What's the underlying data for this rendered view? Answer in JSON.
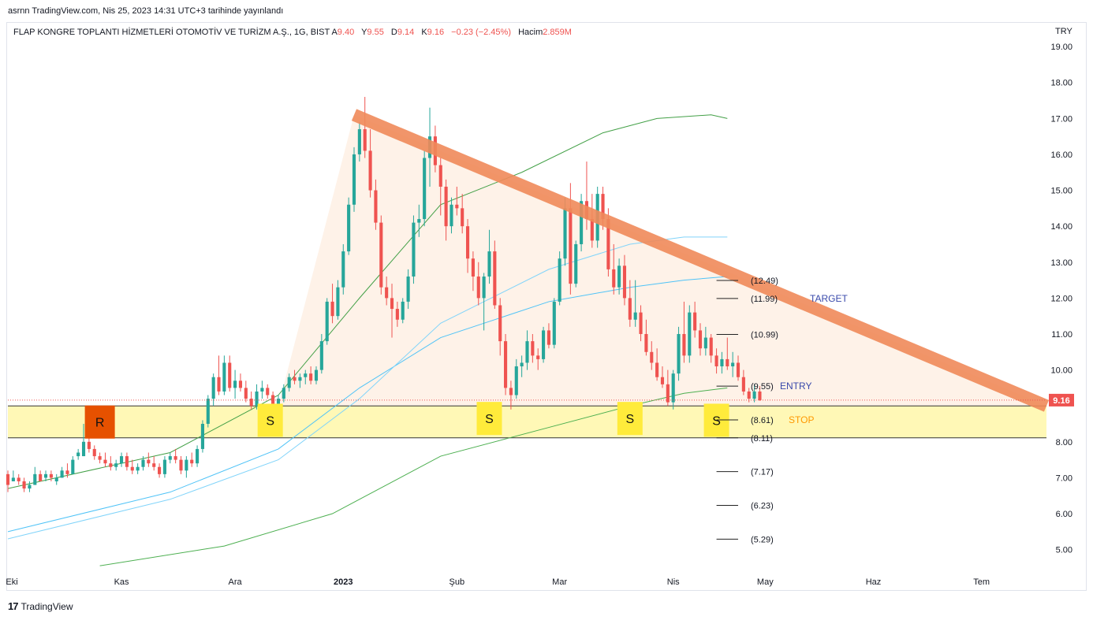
{
  "header": {
    "publish_line": "asrnn TradingView.com, Nis 25, 2023 14:31 UTC+3 tarihinde yayınlandı",
    "symbol": "FLAP KONGRE TOPLANTI HİZMETLERİ OTOMOTİV VE TURİZM A.Ş., 1G, BIST",
    "open_label": "A",
    "open": "9.40",
    "high_label": "Y",
    "high": "9.55",
    "low_label": "D",
    "low": "9.14",
    "close_label": "K",
    "close": "9.16",
    "change": "−0.23 (−2.45%)",
    "volume_label": "Hacim",
    "volume": "2.859M",
    "currency": "TRY"
  },
  "footer": {
    "brand": "TradingView",
    "logo_glyph": "17"
  },
  "colors": {
    "up": "#26a69a",
    "down": "#ef5350",
    "trendline": "#f08a5a",
    "support_zone": "#fff59d",
    "marker_s": "#ffeb3b",
    "marker_r": "#e65100",
    "last_price_bg": "#ef5350"
  },
  "chart_data": {
    "type": "candlestick",
    "y_ticks": [
      "5.00",
      "6.00",
      "7.00",
      "8.00",
      "9.00",
      "10.00",
      "11.00",
      "12.00",
      "13.00",
      "14.00",
      "15.00",
      "16.00",
      "17.00",
      "18.00",
      "19.00"
    ],
    "ylim": [
      4.4,
      19.2
    ],
    "x_ticks": [
      {
        "label": "Eki",
        "x": 0
      },
      {
        "label": "Kas",
        "x": 21
      },
      {
        "label": "Ara",
        "x": 42
      },
      {
        "label": "2023",
        "x": 62
      },
      {
        "label": "Şub",
        "x": 83
      },
      {
        "label": "Mar",
        "x": 102
      },
      {
        "label": "Nis",
        "x": 123
      },
      {
        "label": "May",
        "x": 140
      },
      {
        "label": "Haz",
        "x": 160
      },
      {
        "label": "Tem",
        "x": 180
      }
    ],
    "xlim": [
      0,
      192
    ],
    "last_price": "9.16",
    "support_zone": [
      8.11,
      9.0
    ],
    "levels": [
      {
        "value": 12.49,
        "label": "(12.49)",
        "tag": ""
      },
      {
        "value": 11.99,
        "label": "(11.99)",
        "tag": "TARGET"
      },
      {
        "value": 10.99,
        "label": "(10.99)",
        "tag": ""
      },
      {
        "value": 9.55,
        "label": "(9.55)",
        "tag": "ENTRY"
      },
      {
        "value": 8.61,
        "label": "(8.61)",
        "tag": "STOP"
      },
      {
        "value": 8.11,
        "label": "(8.11)",
        "tag": ""
      },
      {
        "value": 7.17,
        "label": "(7.17)",
        "tag": ""
      },
      {
        "value": 6.23,
        "label": "(6.23)",
        "tag": ""
      },
      {
        "value": 5.29,
        "label": "(5.29)",
        "tag": ""
      }
    ],
    "level_x_range": [
      131,
      135
    ],
    "trendline": [
      [
        64,
        17.1
      ],
      [
        192,
        9.0
      ]
    ],
    "markers": [
      {
        "text": "R",
        "x": 17,
        "y": 8.55
      },
      {
        "text": "S",
        "x": 48.5,
        "y": 8.6
      },
      {
        "text": "S",
        "x": 89,
        "y": 8.65
      },
      {
        "text": "S",
        "x": 115,
        "y": 8.65
      },
      {
        "text": "S",
        "x": 131,
        "y": 8.6
      }
    ],
    "sma_slow": [
      [
        17,
        4.55
      ],
      [
        40,
        5.1
      ],
      [
        60,
        6.0
      ],
      [
        80,
        7.6
      ],
      [
        100,
        8.4
      ],
      [
        115,
        9.0
      ],
      [
        125,
        9.35
      ],
      [
        133,
        9.5
      ]
    ],
    "sma_mid": [
      [
        0,
        6.7
      ],
      [
        30,
        7.7
      ],
      [
        50,
        9.3
      ],
      [
        65,
        12.0
      ],
      [
        80,
        14.6
      ],
      [
        95,
        15.5
      ],
      [
        110,
        16.6
      ],
      [
        120,
        17.0
      ],
      [
        130,
        17.1
      ],
      [
        133,
        17.0
      ]
    ],
    "sma_fast": [
      [
        0,
        5.5
      ],
      [
        30,
        6.6
      ],
      [
        50,
        7.8
      ],
      [
        65,
        9.5
      ],
      [
        80,
        10.9
      ],
      [
        100,
        11.9
      ],
      [
        115,
        12.3
      ],
      [
        125,
        12.5
      ],
      [
        133,
        12.6
      ]
    ],
    "sma_fast2": [
      [
        0,
        5.3
      ],
      [
        30,
        6.4
      ],
      [
        50,
        7.5
      ],
      [
        65,
        9.2
      ],
      [
        80,
        11.3
      ],
      [
        100,
        12.8
      ],
      [
        115,
        13.5
      ],
      [
        125,
        13.7
      ],
      [
        133,
        13.7
      ]
    ],
    "candles": [
      [
        7.1,
        7.2,
        6.6,
        6.8
      ],
      [
        6.9,
        7.2,
        6.9,
        7.0
      ],
      [
        7.0,
        7.1,
        6.8,
        6.9
      ],
      [
        6.9,
        7.0,
        6.6,
        6.7
      ],
      [
        6.7,
        6.9,
        6.6,
        6.8
      ],
      [
        6.8,
        7.3,
        6.8,
        7.1
      ],
      [
        7.1,
        7.2,
        6.9,
        6.9
      ],
      [
        7.0,
        7.2,
        6.9,
        7.1
      ],
      [
        7.1,
        7.2,
        6.9,
        7.0
      ],
      [
        6.9,
        7.1,
        6.8,
        7.0
      ],
      [
        7.0,
        7.3,
        7.0,
        7.2
      ],
      [
        7.2,
        7.4,
        7.0,
        7.1
      ],
      [
        7.1,
        7.6,
        7.1,
        7.5
      ],
      [
        7.6,
        7.8,
        7.5,
        7.7
      ],
      [
        7.6,
        8.5,
        7.6,
        8.0
      ],
      [
        8.0,
        8.2,
        7.7,
        7.8
      ],
      [
        7.8,
        7.9,
        7.5,
        7.6
      ],
      [
        7.6,
        7.7,
        7.4,
        7.5
      ],
      [
        7.5,
        7.7,
        7.3,
        7.4
      ],
      [
        7.4,
        7.6,
        7.2,
        7.3
      ],
      [
        7.3,
        7.5,
        7.2,
        7.4
      ],
      [
        7.4,
        7.7,
        7.3,
        7.6
      ],
      [
        7.6,
        7.7,
        7.2,
        7.3
      ],
      [
        7.3,
        7.5,
        7.1,
        7.2
      ],
      [
        7.2,
        7.4,
        7.1,
        7.3
      ],
      [
        7.3,
        7.6,
        7.2,
        7.5
      ],
      [
        7.5,
        7.7,
        7.3,
        7.4
      ],
      [
        7.4,
        7.6,
        7.2,
        7.3
      ],
      [
        7.3,
        7.4,
        7.0,
        7.1
      ],
      [
        7.1,
        7.6,
        7.0,
        7.5
      ],
      [
        7.5,
        7.7,
        7.4,
        7.6
      ],
      [
        7.6,
        7.8,
        7.4,
        7.5
      ],
      [
        7.5,
        7.6,
        7.1,
        7.2
      ],
      [
        7.2,
        7.6,
        7.0,
        7.5
      ],
      [
        7.5,
        7.7,
        7.3,
        7.4
      ],
      [
        7.4,
        7.9,
        7.3,
        7.8
      ],
      [
        7.8,
        8.6,
        7.7,
        8.5
      ],
      [
        8.5,
        9.3,
        8.4,
        9.2
      ],
      [
        9.2,
        9.9,
        9.0,
        9.8
      ],
      [
        9.8,
        10.4,
        9.3,
        9.4
      ],
      [
        9.4,
        10.4,
        9.3,
        10.2
      ],
      [
        10.2,
        10.4,
        9.4,
        9.5
      ],
      [
        9.5,
        10.0,
        9.2,
        9.7
      ],
      [
        9.7,
        9.9,
        9.4,
        9.5
      ],
      [
        9.5,
        9.7,
        9.1,
        9.2
      ],
      [
        9.2,
        9.4,
        8.9,
        9.0
      ],
      [
        9.0,
        9.6,
        8.9,
        9.4
      ],
      [
        9.4,
        9.7,
        9.2,
        9.5
      ],
      [
        9.5,
        9.6,
        9.2,
        9.3
      ],
      [
        9.3,
        9.4,
        8.9,
        9.0
      ],
      [
        9.0,
        9.3,
        8.9,
        9.2
      ],
      [
        9.2,
        9.6,
        9.1,
        9.5
      ],
      [
        9.5,
        9.9,
        9.4,
        9.8
      ],
      [
        9.8,
        10.0,
        9.6,
        9.7
      ],
      [
        9.7,
        9.9,
        9.5,
        9.8
      ],
      [
        9.8,
        10.0,
        9.6,
        9.9
      ],
      [
        9.9,
        10.1,
        9.6,
        9.7
      ],
      [
        9.7,
        10.1,
        9.6,
        10.0
      ],
      [
        10.0,
        11.0,
        9.9,
        10.8
      ],
      [
        10.8,
        12.0,
        10.7,
        11.9
      ],
      [
        11.9,
        12.4,
        11.3,
        11.5
      ],
      [
        11.5,
        12.5,
        11.4,
        12.3
      ],
      [
        12.3,
        13.5,
        12.1,
        13.3
      ],
      [
        13.3,
        14.8,
        13.2,
        14.6
      ],
      [
        14.6,
        16.2,
        14.4,
        16.0
      ],
      [
        16.0,
        16.9,
        15.8,
        16.7
      ],
      [
        16.7,
        17.6,
        15.9,
        16.1
      ],
      [
        16.1,
        16.7,
        14.8,
        15.0
      ],
      [
        15.0,
        15.3,
        13.9,
        14.1
      ],
      [
        14.1,
        14.3,
        12.1,
        12.3
      ],
      [
        12.3,
        12.6,
        11.8,
        12.0
      ],
      [
        12.0,
        12.4,
        10.9,
        11.7
      ],
      [
        11.7,
        11.9,
        11.2,
        11.4
      ],
      [
        11.4,
        12.0,
        11.3,
        11.9
      ],
      [
        11.9,
        12.8,
        11.7,
        12.6
      ],
      [
        12.6,
        14.3,
        12.4,
        14.1
      ],
      [
        14.1,
        14.6,
        13.7,
        14.2
      ],
      [
        14.2,
        16.1,
        14.0,
        15.9
      ],
      [
        15.9,
        17.3,
        15.1,
        16.5
      ],
      [
        16.5,
        16.8,
        15.5,
        15.7
      ],
      [
        15.7,
        15.9,
        14.3,
        15.1
      ],
      [
        15.1,
        15.3,
        13.6,
        14.0
      ],
      [
        14.0,
        14.8,
        13.8,
        14.6
      ],
      [
        14.6,
        15.1,
        14.3,
        14.5
      ],
      [
        14.5,
        14.9,
        13.8,
        14.0
      ],
      [
        14.0,
        14.2,
        12.7,
        13.1
      ],
      [
        13.1,
        13.3,
        12.2,
        12.6
      ],
      [
        12.6,
        13.0,
        11.8,
        12.0
      ],
      [
        12.0,
        12.7,
        11.1,
        12.6
      ],
      [
        12.6,
        13.9,
        12.4,
        13.3
      ],
      [
        13.3,
        13.6,
        11.7,
        11.8
      ],
      [
        11.8,
        12.0,
        10.4,
        10.8
      ],
      [
        10.8,
        11.0,
        9.3,
        9.5
      ],
      [
        9.5,
        9.7,
        8.9,
        9.3
      ],
      [
        9.3,
        10.3,
        9.2,
        10.1
      ],
      [
        10.1,
        10.4,
        9.8,
        10.2
      ],
      [
        10.2,
        11.1,
        10.0,
        10.8
      ],
      [
        10.8,
        11.0,
        10.2,
        10.4
      ],
      [
        10.4,
        10.6,
        10.0,
        10.3
      ],
      [
        10.3,
        11.2,
        10.2,
        11.1
      ],
      [
        11.1,
        11.3,
        10.6,
        10.7
      ],
      [
        10.7,
        12.0,
        10.6,
        11.9
      ],
      [
        11.9,
        13.3,
        11.8,
        13.1
      ],
      [
        13.1,
        14.8,
        12.9,
        14.5
      ],
      [
        14.5,
        15.2,
        12.1,
        12.4
      ],
      [
        12.4,
        13.6,
        12.3,
        13.5
      ],
      [
        13.5,
        14.9,
        13.3,
        14.7
      ],
      [
        14.7,
        15.8,
        13.9,
        14.2
      ],
      [
        14.2,
        14.9,
        13.4,
        13.6
      ],
      [
        13.6,
        15.1,
        13.4,
        14.9
      ],
      [
        14.9,
        15.1,
        13.9,
        14.2
      ],
      [
        14.2,
        14.5,
        12.6,
        12.8
      ],
      [
        12.8,
        13.5,
        12.1,
        12.3
      ],
      [
        12.3,
        13.1,
        12.1,
        12.9
      ],
      [
        12.9,
        13.2,
        11.8,
        12.0
      ],
      [
        12.0,
        12.5,
        11.2,
        11.4
      ],
      [
        11.4,
        12.5,
        11.2,
        11.6
      ],
      [
        11.6,
        11.8,
        10.8,
        11.0
      ],
      [
        11.0,
        11.4,
        10.4,
        10.5
      ],
      [
        10.5,
        10.8,
        10.0,
        10.2
      ],
      [
        10.2,
        10.6,
        9.7,
        9.8
      ],
      [
        9.8,
        10.1,
        9.5,
        9.6
      ],
      [
        9.6,
        10.0,
        9.0,
        9.1
      ],
      [
        9.1,
        10.0,
        8.9,
        9.9
      ],
      [
        9.9,
        11.2,
        9.7,
        11.0
      ],
      [
        11.0,
        11.9,
        10.2,
        10.4
      ],
      [
        10.4,
        11.8,
        10.2,
        11.6
      ],
      [
        11.6,
        11.9,
        10.9,
        11.1
      ],
      [
        11.1,
        11.3,
        10.4,
        10.6
      ],
      [
        10.6,
        11.2,
        10.4,
        10.9
      ],
      [
        10.9,
        11.0,
        10.2,
        10.4
      ],
      [
        10.4,
        10.6,
        9.9,
        10.1
      ],
      [
        10.1,
        10.5,
        9.9,
        10.3
      ],
      [
        10.3,
        10.9,
        10.0,
        10.1
      ],
      [
        10.1,
        10.5,
        9.8,
        10.2
      ],
      [
        10.2,
        10.4,
        9.7,
        9.8
      ],
      [
        9.8,
        10.0,
        9.3,
        9.4
      ],
      [
        9.4,
        9.5,
        9.1,
        9.2
      ],
      [
        9.2,
        9.6,
        9.1,
        9.4
      ],
      [
        9.4,
        9.55,
        9.14,
        9.16
      ]
    ]
  }
}
